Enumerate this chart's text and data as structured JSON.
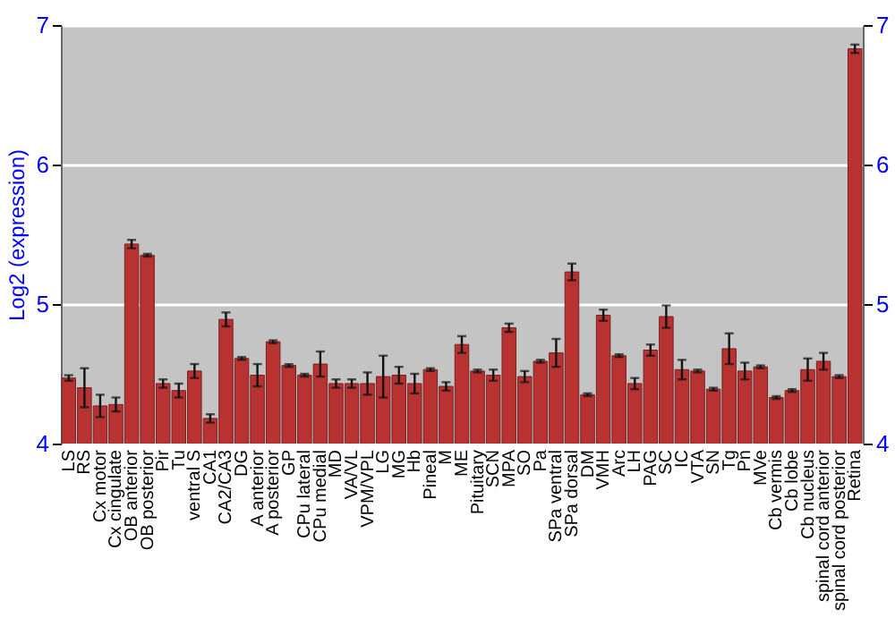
{
  "chart_data": {
    "type": "bar",
    "ylabel": "Log2 (expression)",
    "categories": [
      "LS",
      "RS",
      "Cx motor",
      "Cx cingulate",
      "OB anterior",
      "OB posterior",
      "Pir",
      "Tu",
      "ventral S",
      "CA1",
      "CA2/CA3",
      "DG",
      "A anterior",
      "A posterior",
      "GP",
      "CPu lateral",
      "CPu medial",
      "MD",
      "VA/VL",
      "VPM/VPL",
      "LG",
      "MG",
      "Hb",
      "Pineal",
      "M",
      "ME",
      "Pituitary",
      "SCN",
      "MPA",
      "SO",
      "Pa",
      "SPa ventral",
      "SPa dorsal",
      "DM",
      "VMH",
      "Arc",
      "LH",
      "PAG",
      "SC",
      "IC",
      "VTA",
      "SN",
      "Tg",
      "Pn",
      "MVe",
      "Cb vermis",
      "Cb lobe",
      "Cb nucleus",
      "spinal cord anterior",
      "spinal cord posterior",
      "Retina"
    ],
    "series": [
      {
        "color": "#b83232",
        "values": [
          4.47,
          4.4,
          4.27,
          4.28,
          5.43,
          5.35,
          4.43,
          4.38,
          4.52,
          4.18,
          4.89,
          4.61,
          4.49,
          4.73,
          4.56,
          4.49,
          4.57,
          4.43,
          4.43,
          4.43,
          4.48,
          4.49,
          4.43,
          4.53,
          4.41,
          4.71,
          4.52,
          4.49,
          4.83,
          4.48,
          4.59,
          4.65,
          5.23,
          4.35,
          4.92,
          4.63,
          4.43,
          4.67,
          4.91,
          4.53,
          4.52,
          4.39,
          4.68,
          4.52,
          4.55,
          4.33,
          4.38,
          4.53,
          4.59,
          4.48,
          6.83
        ],
        "errors": [
          0.02,
          0.14,
          0.08,
          0.05,
          0.03,
          0.01,
          0.03,
          0.05,
          0.05,
          0.03,
          0.05,
          0.01,
          0.08,
          0.01,
          0.01,
          0.01,
          0.09,
          0.03,
          0.03,
          0.08,
          0.15,
          0.06,
          0.07,
          0.01,
          0.03,
          0.06,
          0.01,
          0.04,
          0.03,
          0.04,
          0.01,
          0.1,
          0.06,
          0.01,
          0.04,
          0.01,
          0.04,
          0.04,
          0.08,
          0.07,
          0.01,
          0.01,
          0.11,
          0.06,
          0.01,
          0.01,
          0.01,
          0.08,
          0.06,
          0.01,
          0.03
        ]
      }
    ],
    "ylim": [
      4,
      7
    ],
    "yticks": [
      4,
      5,
      6,
      7
    ],
    "y2lim": [
      4,
      7
    ],
    "y2ticks": [
      4,
      5,
      6,
      7
    ],
    "grid": "y"
  }
}
